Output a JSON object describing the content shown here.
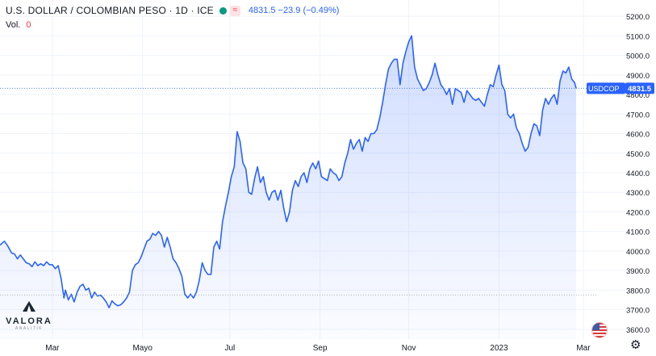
{
  "legend": {
    "title": "U.S. DOLLAR / COLOMBIAN PESO · 1D · ICE",
    "price": "4831.5 −23.9 (−0.49%)",
    "pill_glyph": "≈",
    "status_dot_color": "#089981"
  },
  "volume": {
    "label": "Vol.",
    "value": "0"
  },
  "logo": {
    "name": "VALORA",
    "sub": "ANALITIK"
  },
  "colors": {
    "line": "#2962ff",
    "accent": "#2962ff",
    "down": "#f23645",
    "grid": "#f0f3fa"
  },
  "icons": {
    "settings": "gear-icon",
    "flag": "us-flag-icon",
    "logo": "valora-triangle-icon"
  },
  "chart_data": {
    "type": "area",
    "title": "U.S. DOLLAR / COLOMBIAN PESO",
    "xlabel": "",
    "ylabel": "",
    "ylim": [
      3550,
      5250
    ],
    "y_ticks": [
      3600,
      3700,
      3800,
      3900,
      4000,
      4100,
      4200,
      4300,
      4400,
      4500,
      4600,
      4700,
      4800,
      4900,
      5000,
      5100,
      5200
    ],
    "x_ticks": [
      {
        "label": "Mar",
        "date": "2022-03-01"
      },
      {
        "label": "Mayo",
        "date": "2022-05-02"
      },
      {
        "label": "Jul",
        "date": "2022-07-01"
      },
      {
        "label": "Sep",
        "date": "2022-09-01"
      },
      {
        "label": "Nov",
        "date": "2022-11-01"
      },
      {
        "label": "2023",
        "date": "2023-01-02"
      },
      {
        "label": "Mar",
        "date": "2023-03-01"
      }
    ],
    "last_value": 4831.5,
    "last_label": "USDCOP",
    "last_value_label": "4831.5",
    "reference_level": 3775,
    "grid": true,
    "series": [
      {
        "name": "USDCOP",
        "points": [
          [
            "2022-01-24",
            4030
          ],
          [
            "2022-01-27",
            4050
          ],
          [
            "2022-01-29",
            4030
          ],
          [
            "2022-02-01",
            3990
          ],
          [
            "2022-02-03",
            3985
          ],
          [
            "2022-02-05",
            3960
          ],
          [
            "2022-02-07",
            3980
          ],
          [
            "2022-02-09",
            3960
          ],
          [
            "2022-02-11",
            3940
          ],
          [
            "2022-02-13",
            3935
          ],
          [
            "2022-02-15",
            3920
          ],
          [
            "2022-02-17",
            3945
          ],
          [
            "2022-02-19",
            3925
          ],
          [
            "2022-02-21",
            3935
          ],
          [
            "2022-02-23",
            3925
          ],
          [
            "2022-02-25",
            3945
          ],
          [
            "2022-02-27",
            3930
          ],
          [
            "2022-03-01",
            3930
          ],
          [
            "2022-03-03",
            3910
          ],
          [
            "2022-03-05",
            3925
          ],
          [
            "2022-03-07",
            3860
          ],
          [
            "2022-03-09",
            3760
          ],
          [
            "2022-03-10",
            3800
          ],
          [
            "2022-03-12",
            3750
          ],
          [
            "2022-03-14",
            3780
          ],
          [
            "2022-03-16",
            3740
          ],
          [
            "2022-03-18",
            3790
          ],
          [
            "2022-03-20",
            3820
          ],
          [
            "2022-03-22",
            3830
          ],
          [
            "2022-03-24",
            3800
          ],
          [
            "2022-03-26",
            3810
          ],
          [
            "2022-03-28",
            3760
          ],
          [
            "2022-03-30",
            3790
          ],
          [
            "2022-04-01",
            3770
          ],
          [
            "2022-04-03",
            3775
          ],
          [
            "2022-04-05",
            3760
          ],
          [
            "2022-04-07",
            3740
          ],
          [
            "2022-04-09",
            3710
          ],
          [
            "2022-04-11",
            3745
          ],
          [
            "2022-04-13",
            3730
          ],
          [
            "2022-04-15",
            3720
          ],
          [
            "2022-04-17",
            3725
          ],
          [
            "2022-04-19",
            3740
          ],
          [
            "2022-04-21",
            3760
          ],
          [
            "2022-04-23",
            3790
          ],
          [
            "2022-04-25",
            3900
          ],
          [
            "2022-04-27",
            3930
          ],
          [
            "2022-04-29",
            3940
          ],
          [
            "2022-05-01",
            3970
          ],
          [
            "2022-05-03",
            4010
          ],
          [
            "2022-05-05",
            4050
          ],
          [
            "2022-05-07",
            4060
          ],
          [
            "2022-05-09",
            4090
          ],
          [
            "2022-05-11",
            4080
          ],
          [
            "2022-05-13",
            4100
          ],
          [
            "2022-05-15",
            4080
          ],
          [
            "2022-05-17",
            4020
          ],
          [
            "2022-05-19",
            4070
          ],
          [
            "2022-05-21",
            4020
          ],
          [
            "2022-05-23",
            3960
          ],
          [
            "2022-05-25",
            3940
          ],
          [
            "2022-05-27",
            3910
          ],
          [
            "2022-05-29",
            3870
          ],
          [
            "2022-05-31",
            3780
          ],
          [
            "2022-06-02",
            3760
          ],
          [
            "2022-06-04",
            3780
          ],
          [
            "2022-06-06",
            3760
          ],
          [
            "2022-06-08",
            3790
          ],
          [
            "2022-06-10",
            3850
          ],
          [
            "2022-06-12",
            3940
          ],
          [
            "2022-06-14",
            3900
          ],
          [
            "2022-06-16",
            3880
          ],
          [
            "2022-06-18",
            3880
          ],
          [
            "2022-06-20",
            4020
          ],
          [
            "2022-06-22",
            4050
          ],
          [
            "2022-06-24",
            4010
          ],
          [
            "2022-06-26",
            4150
          ],
          [
            "2022-06-28",
            4230
          ],
          [
            "2022-06-30",
            4300
          ],
          [
            "2022-07-02",
            4380
          ],
          [
            "2022-07-04",
            4430
          ],
          [
            "2022-07-06",
            4610
          ],
          [
            "2022-07-08",
            4560
          ],
          [
            "2022-07-10",
            4450
          ],
          [
            "2022-07-12",
            4420
          ],
          [
            "2022-07-14",
            4300
          ],
          [
            "2022-07-16",
            4290
          ],
          [
            "2022-07-18",
            4370
          ],
          [
            "2022-07-20",
            4430
          ],
          [
            "2022-07-22",
            4350
          ],
          [
            "2022-07-24",
            4380
          ],
          [
            "2022-07-26",
            4300
          ],
          [
            "2022-07-28",
            4260
          ],
          [
            "2022-07-30",
            4300
          ],
          [
            "2022-08-01",
            4310
          ],
          [
            "2022-08-03",
            4260
          ],
          [
            "2022-08-05",
            4310
          ],
          [
            "2022-08-07",
            4220
          ],
          [
            "2022-08-09",
            4150
          ],
          [
            "2022-08-11",
            4200
          ],
          [
            "2022-08-13",
            4310
          ],
          [
            "2022-08-15",
            4360
          ],
          [
            "2022-08-17",
            4330
          ],
          [
            "2022-08-19",
            4380
          ],
          [
            "2022-08-21",
            4400
          ],
          [
            "2022-08-23",
            4350
          ],
          [
            "2022-08-25",
            4420
          ],
          [
            "2022-08-27",
            4450
          ],
          [
            "2022-08-29",
            4420
          ],
          [
            "2022-08-31",
            4460
          ],
          [
            "2022-09-02",
            4380
          ],
          [
            "2022-09-04",
            4370
          ],
          [
            "2022-09-06",
            4360
          ],
          [
            "2022-09-08",
            4420
          ],
          [
            "2022-09-10",
            4400
          ],
          [
            "2022-09-12",
            4390
          ],
          [
            "2022-09-14",
            4360
          ],
          [
            "2022-09-16",
            4380
          ],
          [
            "2022-09-18",
            4450
          ],
          [
            "2022-09-20",
            4500
          ],
          [
            "2022-09-22",
            4570
          ],
          [
            "2022-09-24",
            4520
          ],
          [
            "2022-09-26",
            4550
          ],
          [
            "2022-09-28",
            4570
          ],
          [
            "2022-09-30",
            4510
          ],
          [
            "2022-10-02",
            4580
          ],
          [
            "2022-10-04",
            4560
          ],
          [
            "2022-10-06",
            4600
          ],
          [
            "2022-10-08",
            4600
          ],
          [
            "2022-10-10",
            4620
          ],
          [
            "2022-10-12",
            4680
          ],
          [
            "2022-10-14",
            4760
          ],
          [
            "2022-10-16",
            4850
          ],
          [
            "2022-10-18",
            4930
          ],
          [
            "2022-10-20",
            4960
          ],
          [
            "2022-10-22",
            4980
          ],
          [
            "2022-10-24",
            4980
          ],
          [
            "2022-10-26",
            4850
          ],
          [
            "2022-10-28",
            4960
          ],
          [
            "2022-10-30",
            5020
          ],
          [
            "2022-11-01",
            5070
          ],
          [
            "2022-11-03",
            5100
          ],
          [
            "2022-11-05",
            4940
          ],
          [
            "2022-11-07",
            4880
          ],
          [
            "2022-11-09",
            4850
          ],
          [
            "2022-11-11",
            4820
          ],
          [
            "2022-11-13",
            4830
          ],
          [
            "2022-11-15",
            4860
          ],
          [
            "2022-11-17",
            4900
          ],
          [
            "2022-11-19",
            4960
          ],
          [
            "2022-11-21",
            4900
          ],
          [
            "2022-11-23",
            4850
          ],
          [
            "2022-11-25",
            4830
          ],
          [
            "2022-11-27",
            4800
          ],
          [
            "2022-11-29",
            4830
          ],
          [
            "2022-12-01",
            4750
          ],
          [
            "2022-12-03",
            4830
          ],
          [
            "2022-12-05",
            4820
          ],
          [
            "2022-12-07",
            4810
          ],
          [
            "2022-12-09",
            4760
          ],
          [
            "2022-12-11",
            4820
          ],
          [
            "2022-12-13",
            4800
          ],
          [
            "2022-12-15",
            4780
          ],
          [
            "2022-12-17",
            4770
          ],
          [
            "2022-12-19",
            4780
          ],
          [
            "2022-12-21",
            4760
          ],
          [
            "2022-12-23",
            4740
          ],
          [
            "2022-12-25",
            4800
          ],
          [
            "2022-12-27",
            4850
          ],
          [
            "2022-12-29",
            4840
          ],
          [
            "2022-12-31",
            4900
          ],
          [
            "2023-01-02",
            4950
          ],
          [
            "2023-01-04",
            4850
          ],
          [
            "2023-01-06",
            4820
          ],
          [
            "2023-01-08",
            4700
          ],
          [
            "2023-01-10",
            4680
          ],
          [
            "2023-01-12",
            4700
          ],
          [
            "2023-01-14",
            4630
          ],
          [
            "2023-01-16",
            4600
          ],
          [
            "2023-01-18",
            4550
          ],
          [
            "2023-01-20",
            4510
          ],
          [
            "2023-01-22",
            4530
          ],
          [
            "2023-01-24",
            4600
          ],
          [
            "2023-01-26",
            4650
          ],
          [
            "2023-01-28",
            4640
          ],
          [
            "2023-01-30",
            4590
          ],
          [
            "2023-02-01",
            4720
          ],
          [
            "2023-02-03",
            4780
          ],
          [
            "2023-02-05",
            4750
          ],
          [
            "2023-02-07",
            4780
          ],
          [
            "2023-02-09",
            4800
          ],
          [
            "2023-02-11",
            4750
          ],
          [
            "2023-02-13",
            4870
          ],
          [
            "2023-02-15",
            4920
          ],
          [
            "2023-02-17",
            4910
          ],
          [
            "2023-02-19",
            4940
          ],
          [
            "2023-02-21",
            4880
          ],
          [
            "2023-02-23",
            4860
          ],
          [
            "2023-02-24",
            4831.5
          ]
        ]
      }
    ]
  }
}
